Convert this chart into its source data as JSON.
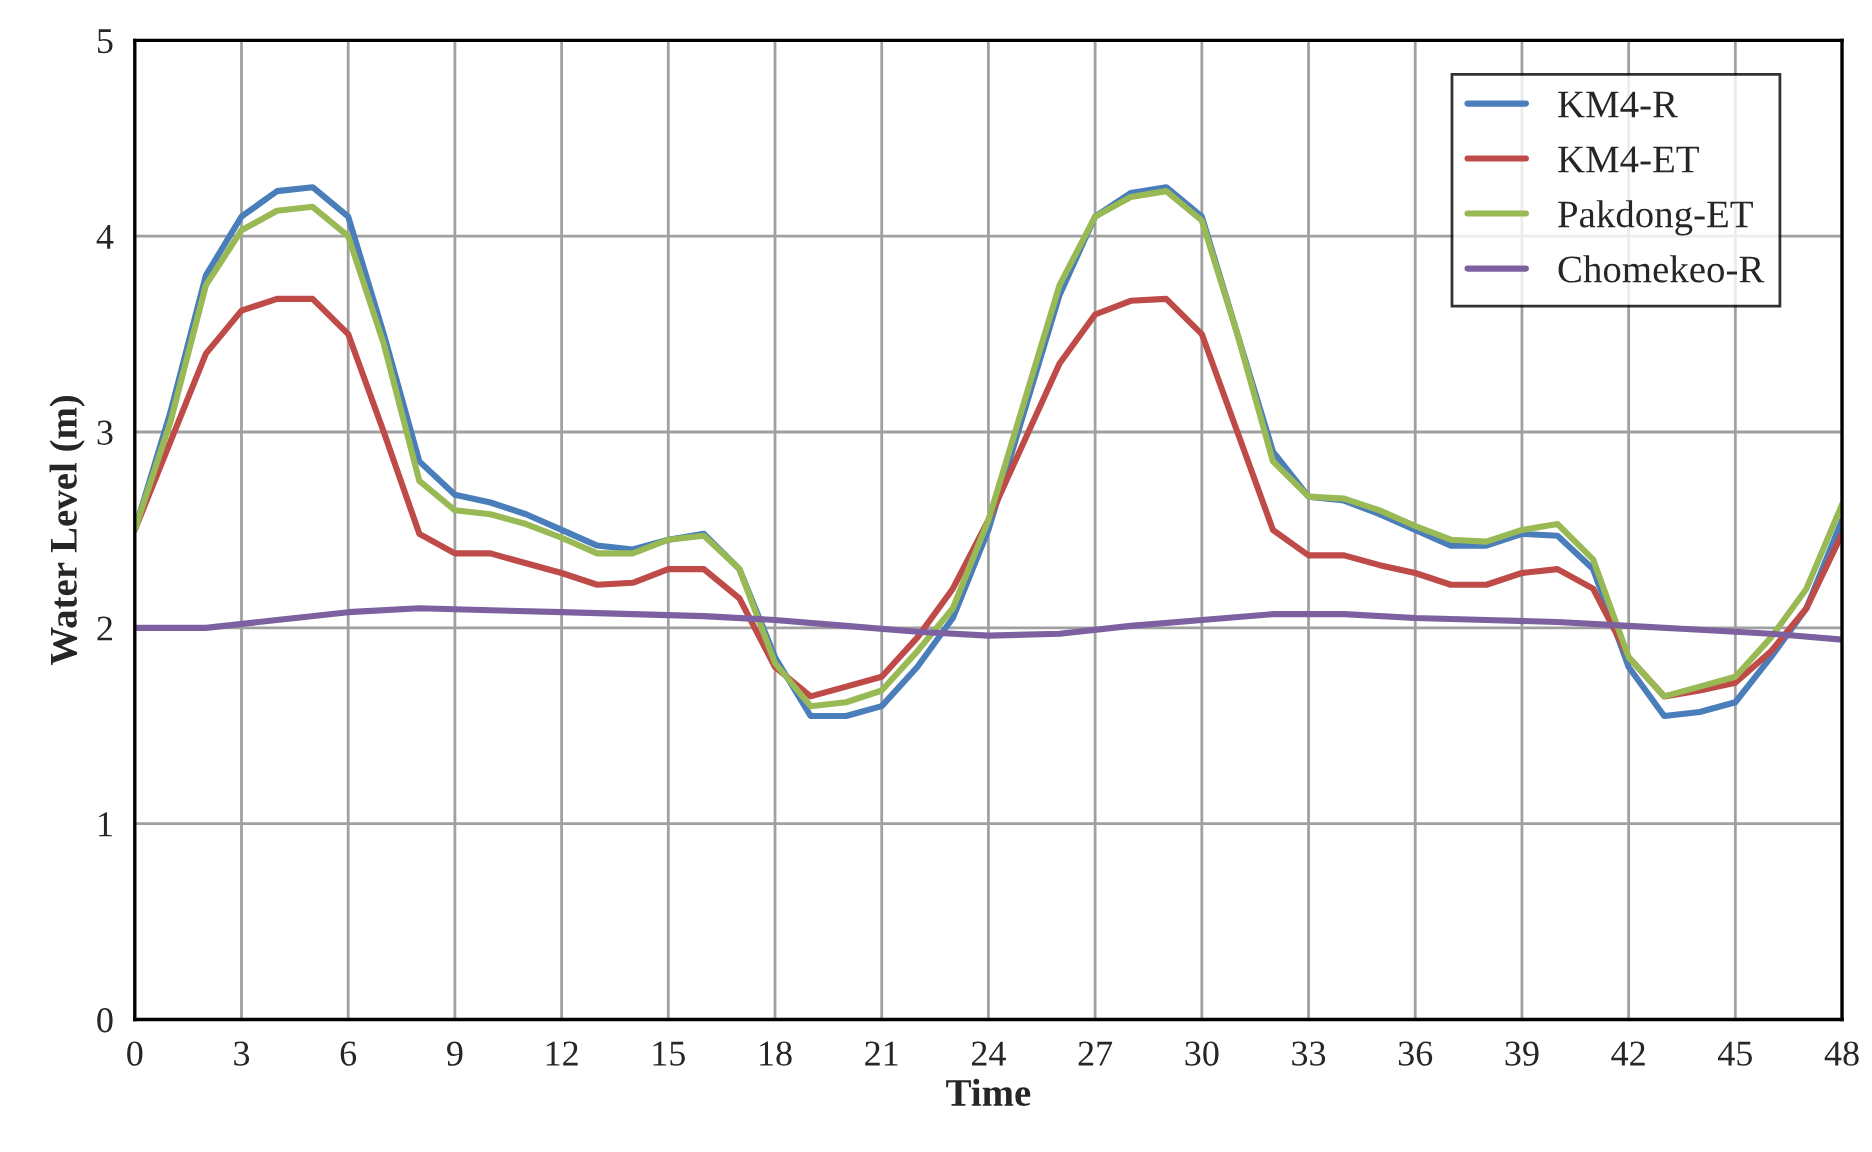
{
  "chart_data": {
    "type": "line",
    "xlabel": "Time",
    "ylabel": "Water Level (m)",
    "x": [
      0,
      1,
      2,
      3,
      4,
      5,
      6,
      7,
      8,
      9,
      10,
      11,
      12,
      13,
      14,
      15,
      16,
      17,
      18,
      19,
      20,
      21,
      22,
      23,
      24,
      25,
      26,
      27,
      28,
      29,
      30,
      31,
      32,
      33,
      34,
      35,
      36,
      37,
      38,
      39,
      40,
      41,
      42,
      43,
      44,
      45,
      46,
      47,
      48
    ],
    "series": [
      {
        "name": "KM4-R",
        "color": "#4a7ebb",
        "values": [
          2.5,
          3.1,
          3.8,
          4.1,
          4.23,
          4.25,
          4.1,
          3.5,
          2.85,
          2.68,
          2.64,
          2.58,
          2.5,
          2.42,
          2.4,
          2.45,
          2.48,
          2.3,
          1.85,
          1.55,
          1.55,
          1.6,
          1.8,
          2.05,
          2.5,
          3.1,
          3.7,
          4.1,
          4.22,
          4.25,
          4.1,
          3.5,
          2.9,
          2.67,
          2.65,
          2.58,
          2.5,
          2.42,
          2.42,
          2.48,
          2.47,
          2.3,
          1.8,
          1.55,
          1.57,
          1.62,
          1.85,
          2.1,
          2.55
        ]
      },
      {
        "name": "KM4-ET",
        "color": "#be4b48",
        "values": [
          2.5,
          2.95,
          3.4,
          3.62,
          3.68,
          3.68,
          3.5,
          3.0,
          2.48,
          2.38,
          2.38,
          2.33,
          2.28,
          2.22,
          2.23,
          2.3,
          2.3,
          2.15,
          1.8,
          1.65,
          1.7,
          1.75,
          1.95,
          2.2,
          2.55,
          2.95,
          3.35,
          3.6,
          3.67,
          3.68,
          3.5,
          3.0,
          2.5,
          2.37,
          2.37,
          2.32,
          2.28,
          2.22,
          2.22,
          2.28,
          2.3,
          2.2,
          1.85,
          1.65,
          1.68,
          1.72,
          1.88,
          2.1,
          2.48
        ]
      },
      {
        "name": "Pakdong-ET",
        "color": "#98b954",
        "values": [
          2.5,
          3.05,
          3.75,
          4.03,
          4.13,
          4.15,
          4.0,
          3.45,
          2.75,
          2.6,
          2.58,
          2.53,
          2.46,
          2.38,
          2.38,
          2.45,
          2.47,
          2.3,
          1.82,
          1.6,
          1.62,
          1.68,
          1.88,
          2.1,
          2.55,
          3.15,
          3.75,
          4.1,
          4.2,
          4.23,
          4.08,
          3.5,
          2.85,
          2.67,
          2.66,
          2.6,
          2.52,
          2.45,
          2.44,
          2.5,
          2.53,
          2.35,
          1.85,
          1.65,
          1.7,
          1.75,
          1.95,
          2.2,
          2.63
        ]
      },
      {
        "name": "Chomekeo-R",
        "color": "#7d60a0",
        "x": [
          0,
          2,
          4,
          6,
          8,
          10,
          12,
          14,
          16,
          18,
          20,
          22,
          24,
          26,
          28,
          30,
          32,
          34,
          36,
          38,
          40,
          42,
          44,
          46,
          48
        ],
        "values": [
          2.0,
          2.0,
          2.04,
          2.08,
          2.1,
          2.09,
          2.08,
          2.07,
          2.06,
          2.04,
          2.01,
          1.98,
          1.96,
          1.97,
          2.01,
          2.04,
          2.07,
          2.07,
          2.05,
          2.04,
          2.03,
          2.01,
          1.99,
          1.97,
          1.94
        ]
      }
    ],
    "xlim": [
      0,
      48
    ],
    "xticks": [
      0,
      3,
      6,
      9,
      12,
      15,
      18,
      21,
      24,
      27,
      30,
      33,
      36,
      39,
      42,
      45,
      48
    ],
    "ylim": [
      0,
      5
    ],
    "yticks": [
      0,
      1,
      2,
      3,
      4,
      5
    ],
    "grid": true,
    "legend": "top right",
    "marker": "none",
    "line_style": "solid"
  }
}
